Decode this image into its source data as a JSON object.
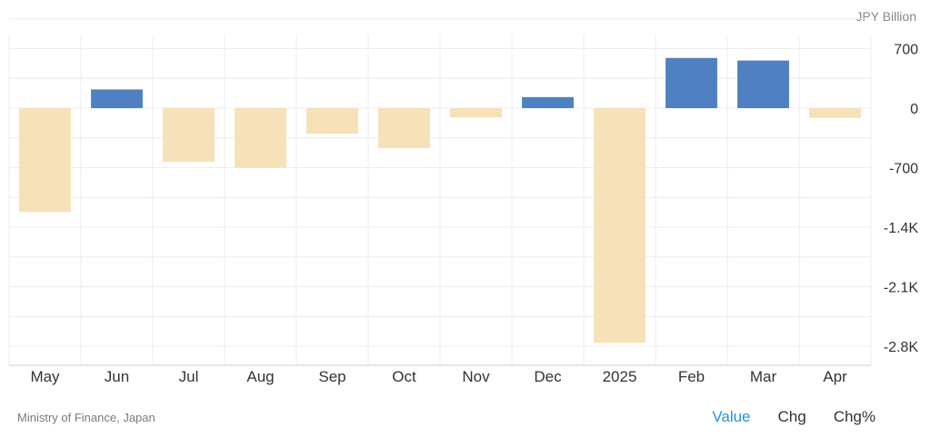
{
  "unit_label": "JPY Billion",
  "source": "Ministry of Finance, Japan",
  "view_toggles": [
    {
      "label": "Value",
      "active": true
    },
    {
      "label": "Chg",
      "active": false
    },
    {
      "label": "Chg%",
      "active": false
    }
  ],
  "chart_data": {
    "type": "bar",
    "categories": [
      "May",
      "Jun",
      "Jul",
      "Aug",
      "Sep",
      "Oct",
      "Nov",
      "Dec",
      "2025",
      "Feb",
      "Mar",
      "Apr"
    ],
    "values": [
      -1220,
      220,
      -630,
      -700,
      -300,
      -470,
      -110,
      130,
      -2760,
      590,
      560,
      -115
    ],
    "ylim": [
      -2800,
      700
    ],
    "yticks": [
      700,
      0,
      -700,
      -1400,
      -2100,
      -2800
    ],
    "ytick_labels": [
      "700",
      "0",
      "-700",
      "-1.4K",
      "-2.1K",
      "-2.8K"
    ],
    "grid": true,
    "colors": {
      "positive": "#4f81c2",
      "negative": "#f6e1b9",
      "grid": "#ececec",
      "axis": "#cfcfcf",
      "tick_text": "#333333"
    }
  }
}
